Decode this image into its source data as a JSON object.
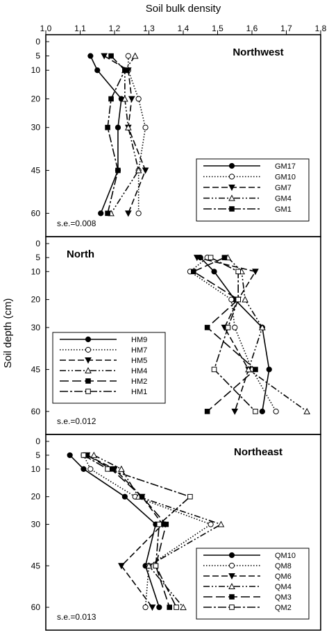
{
  "chart_data": {
    "type": "line",
    "title": "",
    "xlabel": "Soil bulk density",
    "ylabel": "Soil depth (cm)",
    "xlim": [
      1.0,
      1.8
    ],
    "x_ticks": [
      "1.0",
      "1.1",
      "1.2",
      "1.3",
      "1.4",
      "1.5",
      "1.6",
      "1.7",
      "1.8"
    ],
    "ylim": [
      0,
      65
    ],
    "y_ticks": [
      "0",
      "5",
      "10",
      "20",
      "30",
      "45",
      "60"
    ],
    "depths": [
      5,
      10,
      20,
      30,
      45,
      60
    ],
    "panels": [
      {
        "label": "Northwest",
        "se": "s.e.=0.008",
        "legend_position": "bottom-right",
        "series": [
          {
            "name": "GM17",
            "style": "solid",
            "marker": "filled-circle",
            "values": [
              1.13,
              1.15,
              1.22,
              1.21,
              1.21,
              1.16
            ]
          },
          {
            "name": "GM10",
            "style": "dotted",
            "marker": "open-circle",
            "values": [
              1.24,
              1.24,
              1.27,
              1.29,
              1.27,
              1.27
            ]
          },
          {
            "name": "GM7",
            "style": "dashed",
            "marker": "filled-triangle-down",
            "values": [
              1.17,
              1.24,
              1.25,
              1.24,
              1.29,
              1.24
            ]
          },
          {
            "name": "GM4",
            "style": "dash-dot-dot",
            "marker": "open-triangle",
            "values": [
              1.26,
              1.23,
              1.23,
              1.24,
              1.27,
              1.19
            ]
          },
          {
            "name": "GM1",
            "style": "long-dash-dot",
            "marker": "filled-square",
            "values": [
              1.19,
              1.23,
              1.19,
              1.18,
              1.21,
              1.18
            ]
          }
        ]
      },
      {
        "label": "North",
        "se": "s.e.=0.012",
        "legend_position": "bottom-left",
        "series": [
          {
            "name": "HM9",
            "style": "solid",
            "marker": "filled-circle",
            "values": [
              1.45,
              1.49,
              1.55,
              1.63,
              1.65,
              1.63
            ]
          },
          {
            "name": "HM7",
            "style": "dotted",
            "marker": "open-circle",
            "values": [
              1.47,
              1.42,
              1.54,
              1.55,
              1.6,
              1.67
            ]
          },
          {
            "name": "HM5",
            "style": "dashed",
            "marker": "filled-triangle-down",
            "values": [
              1.44,
              1.61,
              1.56,
              1.52,
              1.59,
              1.55
            ]
          },
          {
            "name": "HM4",
            "style": "dash-dot-dot",
            "marker": "open-triangle",
            "values": [
              1.53,
              1.57,
              1.58,
              1.63,
              1.59,
              1.76
            ]
          },
          {
            "name": "HM2",
            "style": "long-dash",
            "marker": "filled-square",
            "values": [
              1.52,
              1.43,
              1.56,
              1.47,
              1.61,
              1.47
            ]
          },
          {
            "name": "HM1",
            "style": "long-dash-dot",
            "marker": "open-square",
            "values": [
              1.48,
              1.56,
              1.56,
              1.53,
              1.49,
              1.61
            ]
          }
        ]
      },
      {
        "label": "Northeast",
        "se": "s.e.=0.013",
        "legend_position": "bottom-right",
        "series": [
          {
            "name": "QM10",
            "style": "solid",
            "marker": "filled-circle",
            "values": [
              1.07,
              1.11,
              1.23,
              1.32,
              1.29,
              1.33
            ]
          },
          {
            "name": "QM8",
            "style": "dotted",
            "marker": "open-circle",
            "values": [
              1.11,
              1.13,
              1.26,
              1.48,
              1.3,
              1.29
            ]
          },
          {
            "name": "QM6",
            "style": "dashed",
            "marker": "filled-triangle-down",
            "values": [
              1.12,
              1.2,
              1.28,
              1.34,
              1.22,
              1.31
            ]
          },
          {
            "name": "QM4",
            "style": "dash-dot-dot",
            "marker": "open-triangle",
            "values": [
              1.14,
              1.22,
              1.27,
              1.51,
              1.3,
              1.4
            ]
          },
          {
            "name": "QM3",
            "style": "long-dash",
            "marker": "filled-square",
            "values": [
              1.12,
              1.19,
              1.28,
              1.35,
              1.32,
              1.36
            ]
          },
          {
            "name": "QM2",
            "style": "long-dash-dot",
            "marker": "open-square",
            "values": [
              1.11,
              1.18,
              1.42,
              1.33,
              1.32,
              1.38
            ]
          }
        ]
      }
    ]
  }
}
